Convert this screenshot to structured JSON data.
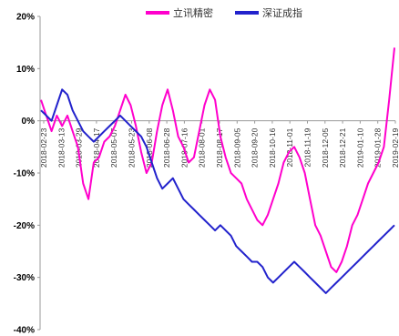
{
  "chart_data": {
    "type": "line",
    "legend_placement": "top-center",
    "grid": false,
    "ylim": [
      -40,
      20
    ],
    "y_ticks": [
      20,
      10,
      0,
      -10,
      -20,
      -30,
      -40
    ],
    "y_tick_labels": [
      "20%",
      "10%",
      "0%",
      "-10%",
      "-20%",
      "-30%",
      "-40%"
    ],
    "x_ticks": [
      "2018-02-23",
      "2018-03-13",
      "2018-03-29",
      "2018-04-17",
      "2018-05-07",
      "2018-05-23",
      "2018-06-08",
      "2018-06-28",
      "2018-07-16",
      "2018-08-01",
      "2018-08-17",
      "2018-09-05",
      "2018-09-20",
      "2018-10-16",
      "2018-11-01",
      "2018-11-19",
      "2018-12-05",
      "2018-12-21",
      "2019-01-10",
      "2019-01-28",
      "2019-02-19"
    ],
    "x_tick_labels": [
      "2018-02-23",
      "2018-03-13",
      "2018-03-29",
      "2018-04-17",
      "2018-05-07",
      "2018-05-23",
      "2018-06-08",
      "2018-06-28",
      "2018-07-16",
      "2018-08-01",
      "2018-08-17",
      "2018-09-05",
      "2018-09-20",
      "2018-10-16",
      "2018-11-01",
      "2018-11-19",
      "2018-12-05",
      "2018-12-21",
      "2019-01-10",
      "2019-01-28",
      "2019-02-19"
    ],
    "series": [
      {
        "name": "立讯精密",
        "color": "#ff00cc",
        "values": [
          4,
          1,
          -2,
          1,
          -1,
          1,
          -2,
          -5,
          -12,
          -15,
          -8,
          -7,
          -4,
          -3,
          -1,
          2,
          5,
          3,
          -1,
          -6,
          -10,
          -8,
          -2,
          3,
          6,
          2,
          -3,
          -5,
          -8,
          -7,
          -2,
          3,
          6,
          4,
          -3,
          -7,
          -10,
          -11,
          -12,
          -15,
          -17,
          -19,
          -20,
          -18,
          -15,
          -12,
          -8,
          -6,
          -5,
          -7,
          -10,
          -15,
          -20,
          -22,
          -25,
          -28,
          -29,
          -27,
          -24,
          -20,
          -18,
          -15,
          -12,
          -10,
          -8,
          -5,
          4,
          14
        ]
      },
      {
        "name": "深证成指",
        "color": "#2222cc",
        "values": [
          2,
          1,
          0,
          3,
          6,
          5,
          2,
          0,
          -2,
          -3,
          -4,
          -3,
          -2,
          -1,
          0,
          1,
          0,
          -1,
          -2,
          -3,
          -5,
          -8,
          -11,
          -13,
          -12,
          -11,
          -13,
          -15,
          -16,
          -17,
          -18,
          -19,
          -20,
          -21,
          -20,
          -21,
          -22,
          -24,
          -25,
          -26,
          -27,
          -27,
          -28,
          -30,
          -31,
          -30,
          -29,
          -28,
          -27,
          -28,
          -29,
          -30,
          -31,
          -32,
          -33,
          -32,
          -31,
          -30,
          -29,
          -28,
          -27,
          -26,
          -25,
          -24,
          -23,
          -22,
          -21,
          -20
        ]
      }
    ]
  }
}
